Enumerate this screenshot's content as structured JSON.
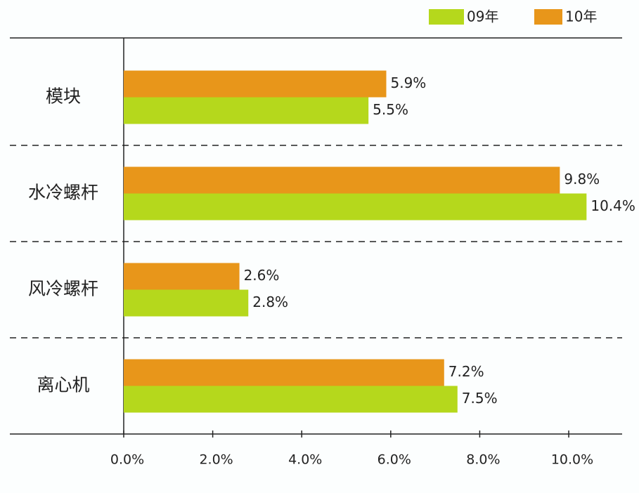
{
  "chart_data": {
    "type": "hbar",
    "categories": [
      "模块",
      "水冷螺杆",
      "风冷螺杆",
      "离心机"
    ],
    "series": [
      {
        "name": "09年",
        "color": "#b5d81c",
        "values": [
          5.5,
          10.4,
          2.8,
          7.5
        ],
        "value_labels": [
          "5.5%",
          "10.4%",
          "2.8%",
          "7.5%"
        ]
      },
      {
        "name": "10年",
        "color": "#e8961a",
        "values": [
          5.9,
          9.8,
          2.6,
          7.2
        ],
        "value_labels": [
          "5.9%",
          "9.8%",
          "2.6%",
          "7.2%"
        ]
      }
    ],
    "xlim": [
      0,
      11.2
    ],
    "xticks": [
      {
        "value": 0,
        "label": "0.0%"
      },
      {
        "value": 2,
        "label": "2.0%"
      },
      {
        "value": 4,
        "label": "4.0%"
      },
      {
        "value": 6,
        "label": "6.0%"
      },
      {
        "value": 8,
        "label": "8.0%"
      },
      {
        "value": 10,
        "label": "10.0%"
      }
    ],
    "legend": "top-right"
  }
}
